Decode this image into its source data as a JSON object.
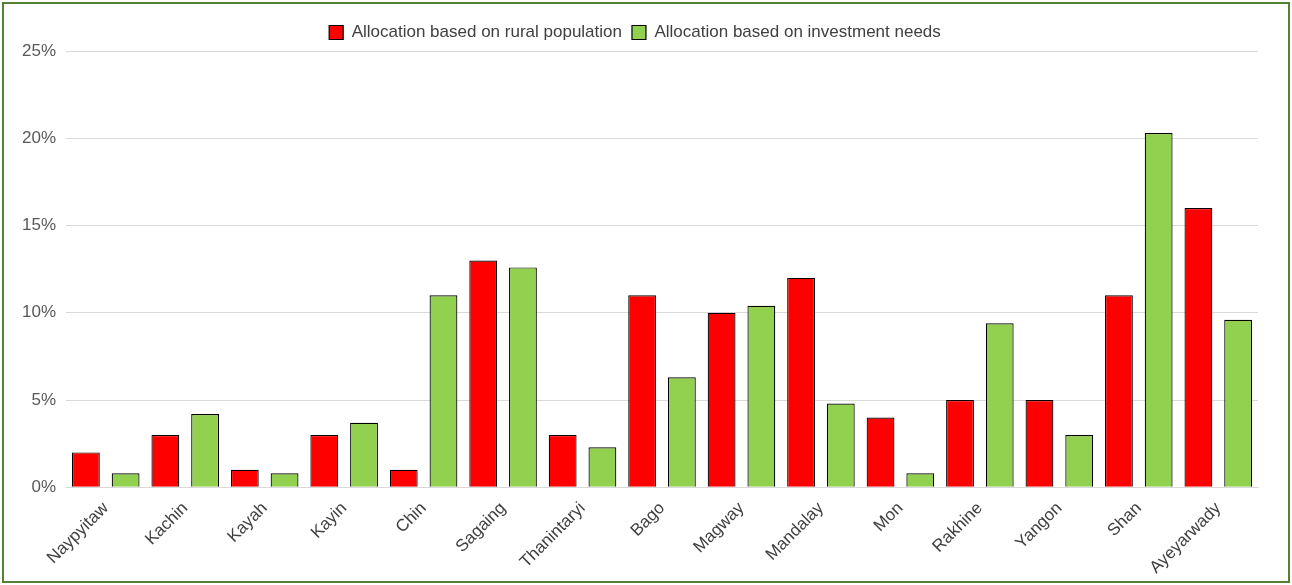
{
  "chart_data": {
    "type": "bar",
    "categories": [
      "Naypyitaw",
      "Kachin",
      "Kayah",
      "Kayin",
      "Chin",
      "Sagaing",
      "Thanintaryi",
      "Bago",
      "Magway",
      "Mandalay",
      "Mon",
      "Rakhine",
      "Yangon",
      "Shan",
      "Ayeyarwady"
    ],
    "series": [
      {
        "name": "Allocation based on rural population",
        "color": "#ff0000",
        "values": [
          2,
          3,
          1,
          3,
          1,
          13,
          3,
          11,
          10,
          12,
          4,
          5,
          5,
          11,
          16
        ]
      },
      {
        "name": "Allocation based on investment needs",
        "color": "#92d050",
        "values": [
          0.8,
          4.2,
          0.8,
          3.7,
          11,
          12.6,
          2.3,
          6.3,
          10.4,
          4.8,
          0.8,
          9.4,
          3,
          20.3,
          9.6
        ]
      }
    ],
    "ylim": [
      0,
      25
    ],
    "yticks": [
      {
        "value": 0,
        "label": "0%"
      },
      {
        "value": 5,
        "label": "5%"
      },
      {
        "value": 10,
        "label": "10%"
      },
      {
        "value": 15,
        "label": "15%"
      },
      {
        "value": 20,
        "label": "20%"
      },
      {
        "value": 25,
        "label": "25%"
      }
    ],
    "grid": "y",
    "legend": "top"
  }
}
